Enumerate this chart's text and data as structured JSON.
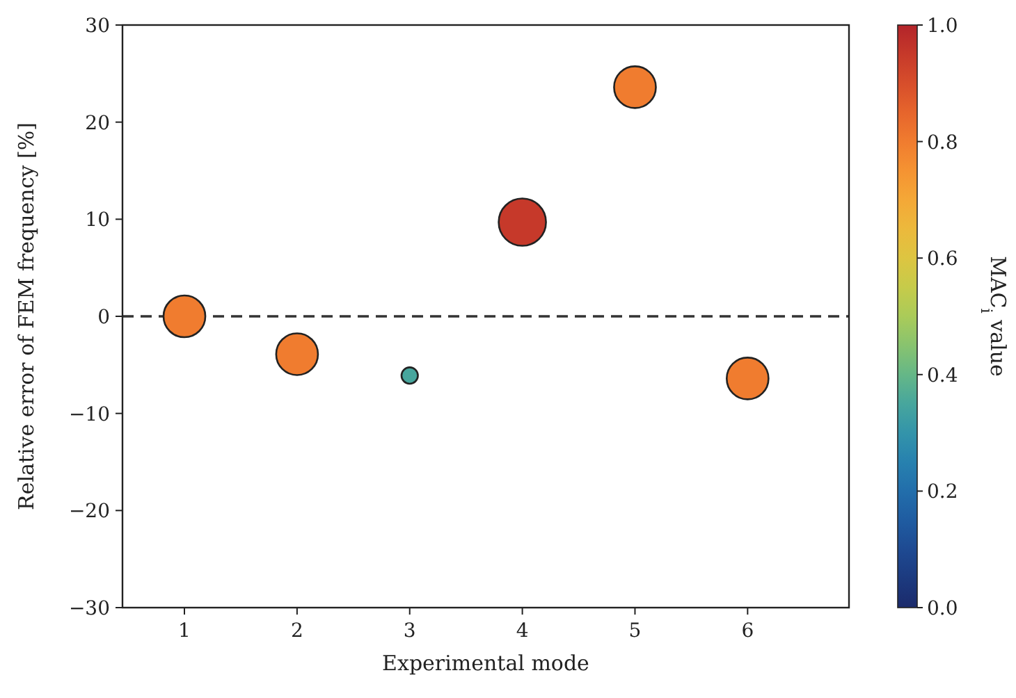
{
  "chart_data": {
    "type": "bubble",
    "xlabel": "Experimental mode",
    "ylabel": "Relative error of FEM frequency [%]",
    "clabel": "MAC$_{i}$ value",
    "x": [
      1,
      2,
      3,
      4,
      5,
      6
    ],
    "values": [
      0,
      -3.9,
      -6.1,
      9.7,
      23.6,
      -6.4
    ],
    "sizes": [
      0.78,
      0.78,
      0.12,
      1,
      0.78,
      0.78
    ],
    "cvalues": [
      0.8,
      0.8,
      0.35,
      0.95,
      0.8,
      0.8
    ],
    "clim": [
      0,
      1
    ],
    "cticks": [
      {
        "value": 0,
        "label": "0.0"
      },
      {
        "value": 0.2,
        "label": "0.2"
      },
      {
        "value": 0.4,
        "label": "0.4"
      },
      {
        "value": 0.6,
        "label": "0.6"
      },
      {
        "value": 0.8,
        "label": "0.8"
      },
      {
        "value": 1,
        "label": "1.0"
      }
    ],
    "xlim": [
      0.45,
      6.9
    ],
    "xticks": [
      1,
      2,
      3,
      4,
      5,
      6
    ],
    "ylim": [
      -30,
      30
    ],
    "yticks": [
      {
        "value": -30,
        "label": "−30"
      },
      {
        "value": -20,
        "label": "−20"
      },
      {
        "value": -10,
        "label": "−10"
      },
      0,
      10,
      20,
      30
    ],
    "ref_lines": [
      {
        "axis": "y",
        "value": 0,
        "color": "#333333",
        "line_style": "dashed"
      }
    ],
    "grid": false
  }
}
